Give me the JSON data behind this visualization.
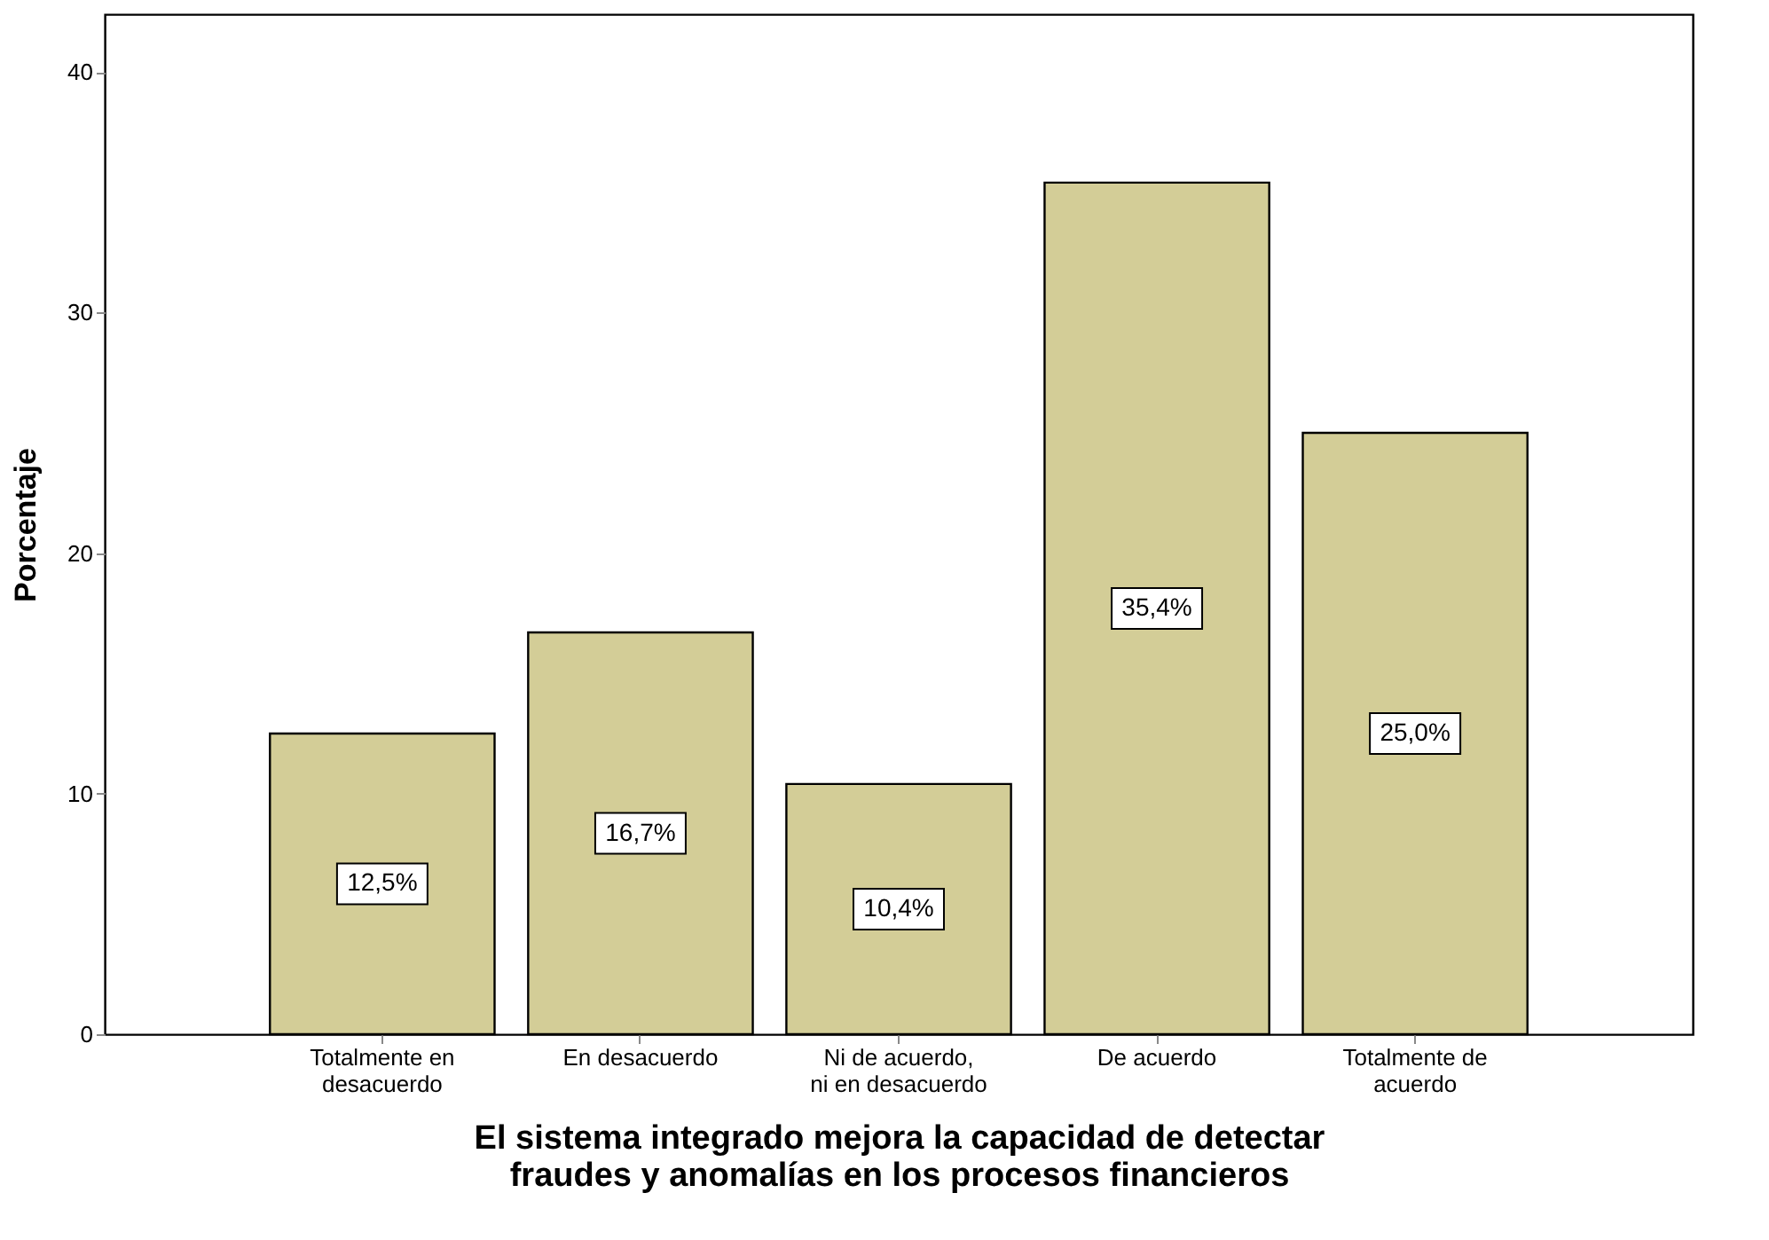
{
  "chart_data": {
    "type": "bar",
    "xlabel": "El sistema integrado mejora la capacidad de detectar fraudes y anomalías en los procesos financieros",
    "ylabel": "Porcentaje",
    "categories": [
      "Totalmente en desacuerdo",
      "En desacuerdo",
      "Ni de acuerdo, ni en desacuerdo",
      "De acuerdo",
      "Totalmente de acuerdo"
    ],
    "values": [
      12.5,
      16.7,
      10.4,
      35.4,
      25.0
    ],
    "value_labels": [
      "12,5%",
      "16,7%",
      "10,4%",
      "35,4%",
      "25,0%"
    ],
    "color": "#d3cd97",
    "ylim": [
      0,
      42.4
    ],
    "yticks": [
      0,
      10,
      20,
      30,
      40
    ],
    "grid": false
  }
}
